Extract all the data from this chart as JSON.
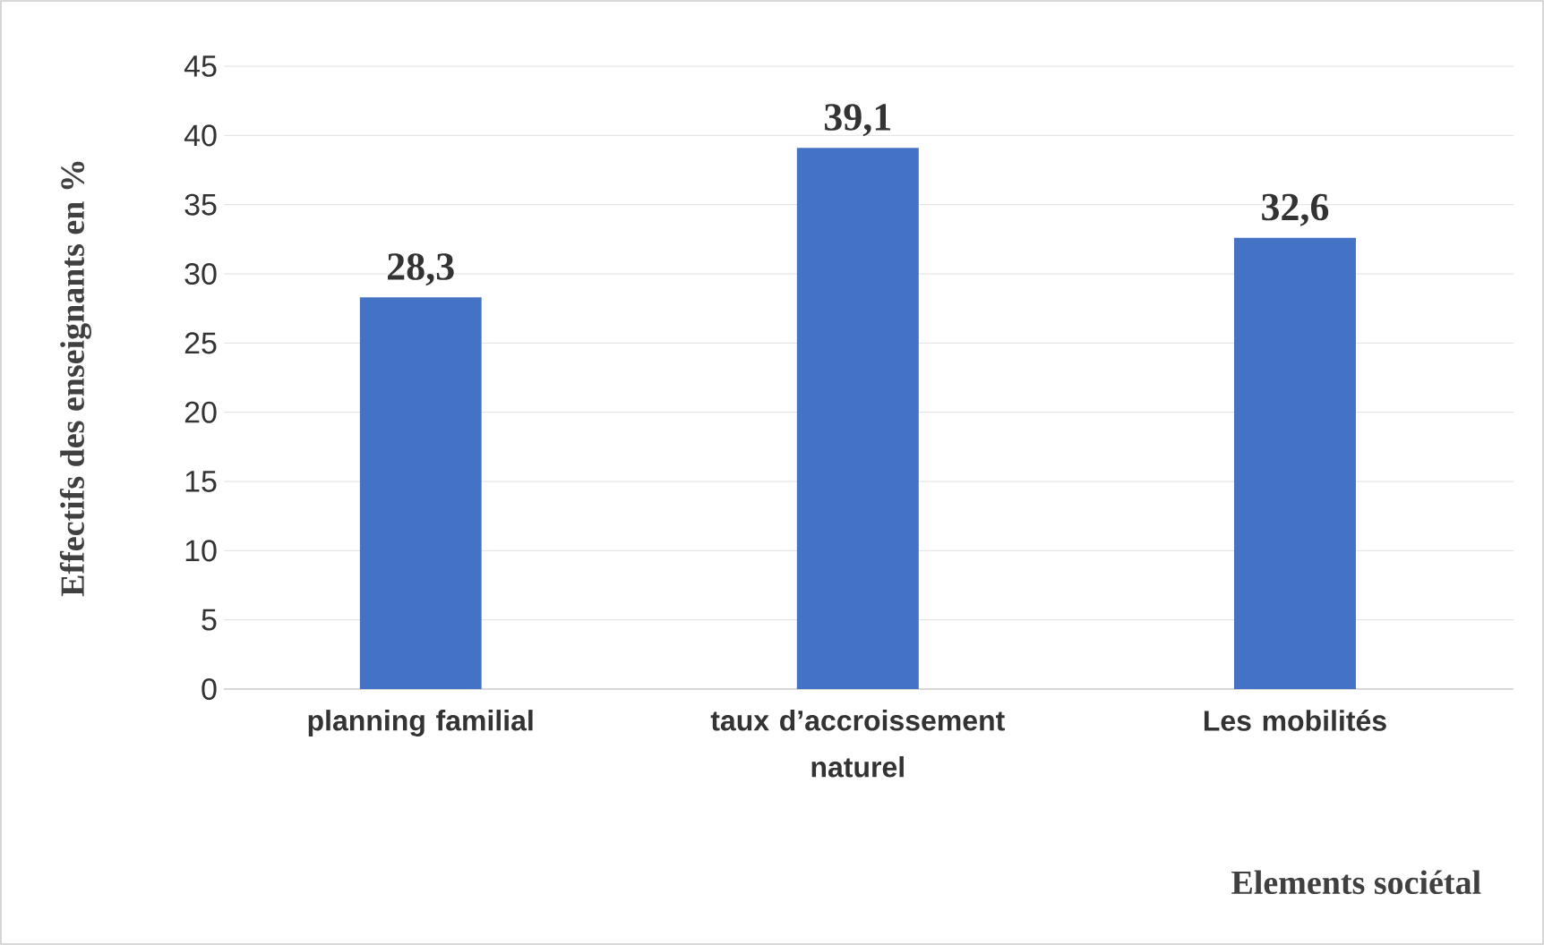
{
  "chart_data": {
    "type": "bar",
    "xlabel": "Elements sociétal",
    "ylabel": "Effectifs des enseignants en %",
    "categories": [
      "planning familial",
      "taux d’accroissement naturel",
      "Les mobilités"
    ],
    "values": [
      28.3,
      39.1,
      32.6
    ],
    "value_labels": [
      "28,3",
      "39,1",
      "32,6"
    ],
    "color": "#4472c4",
    "ylim": [
      0,
      45
    ],
    "yticks": [
      0,
      5,
      10,
      15,
      20,
      25,
      30,
      35,
      40,
      45
    ],
    "grid": "y"
  }
}
